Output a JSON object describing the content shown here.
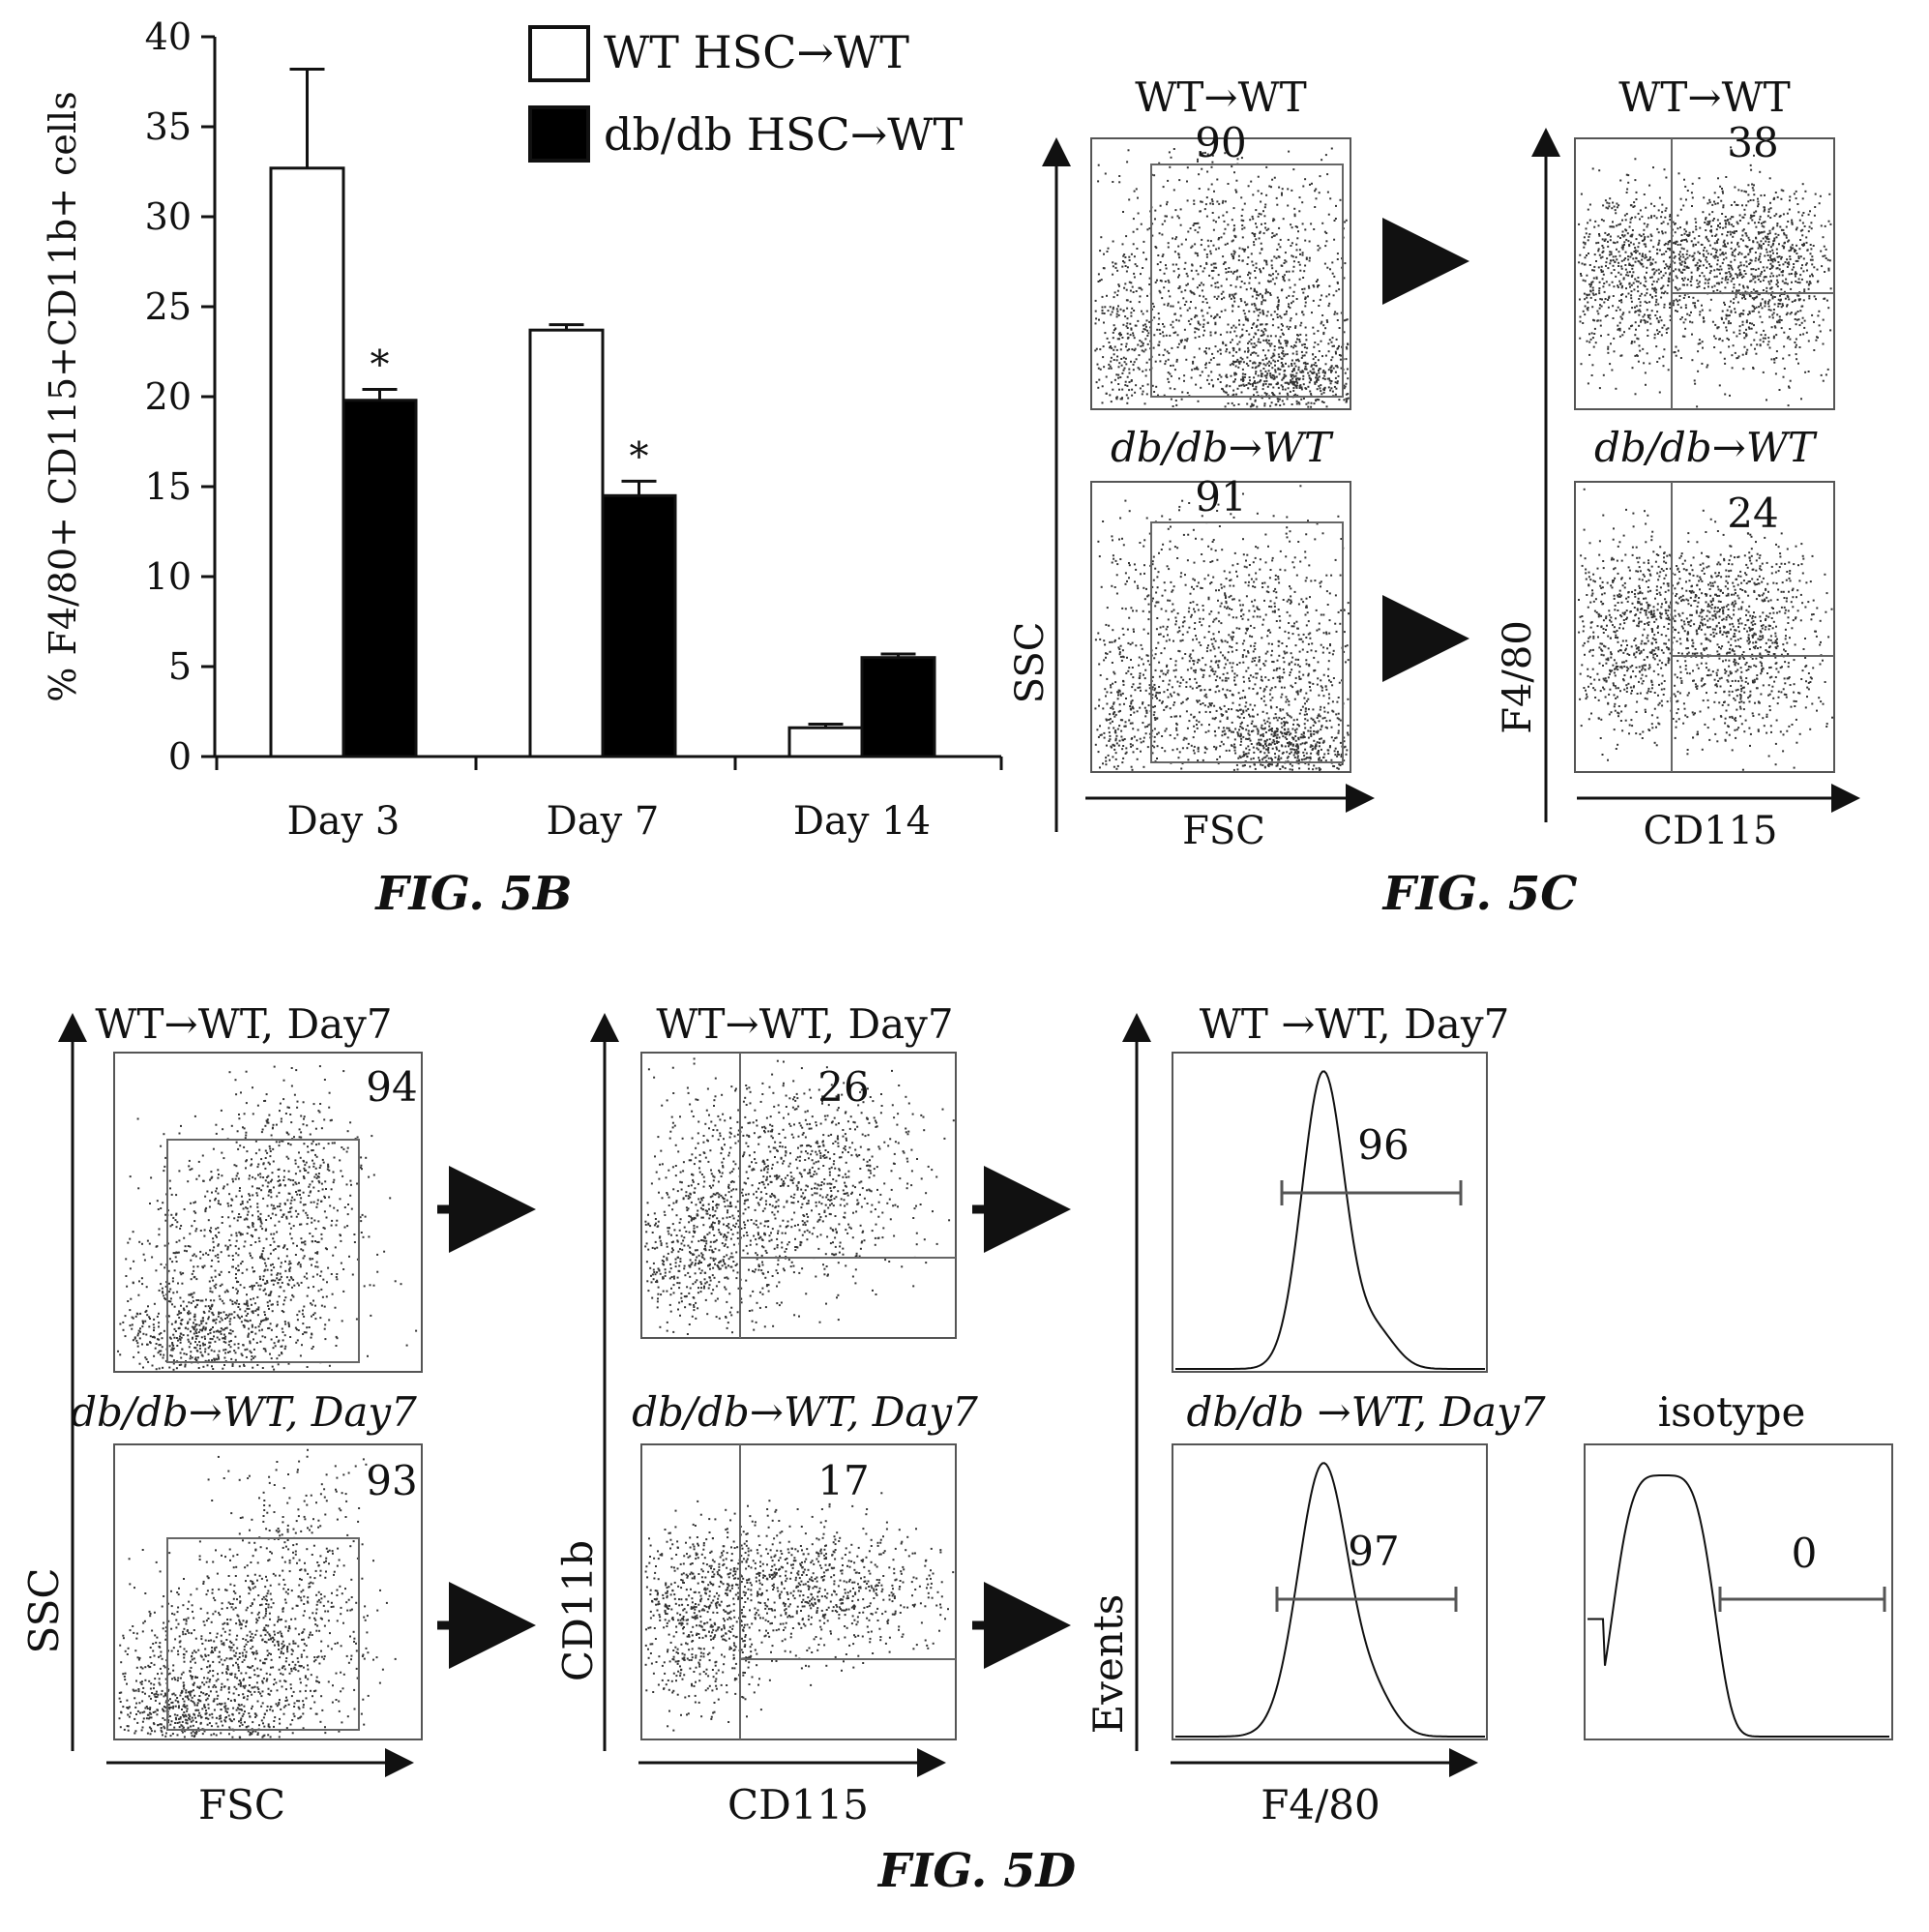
{
  "figures": {
    "fig5b_caption": "FIG. 5B",
    "fig5c_caption": "FIG. 5C",
    "fig5d_caption": "FIG. 5D"
  },
  "chart_data": [
    {
      "type": "bar",
      "panel": "FIG. 5B",
      "categories": [
        "Day 3",
        "Day 7",
        "Day 14"
      ],
      "series": [
        {
          "name": "WT HSC→WT",
          "values": [
            32.7,
            23.7,
            1.6
          ],
          "errors": [
            5.5,
            0.3,
            0.2
          ],
          "color": "#ffffff"
        },
        {
          "name": "db/db HSC→WT",
          "values": [
            19.8,
            14.5,
            5.5
          ],
          "errors": [
            0.6,
            0.8,
            0.2
          ],
          "color": "#000000"
        }
      ],
      "significance": [
        "*",
        "*",
        ""
      ],
      "ylabel": "% F4/80+ CD115+CD11b+ cells",
      "ylim": [
        0,
        40
      ],
      "yticks": [
        0,
        5,
        10,
        15,
        20,
        25,
        30,
        35,
        40
      ],
      "legend_position": "top"
    },
    {
      "type": "scatter",
      "panel": "FIG. 5C",
      "plots": [
        {
          "title": "WT→WT",
          "gate_value": "90",
          "xlabel": "FSC",
          "ylabel": "SSC"
        },
        {
          "title": "db/db→WT",
          "gate_value": "91",
          "xlabel": "FSC",
          "ylabel": "SSC"
        },
        {
          "title": "WT→WT",
          "gate_value": "38",
          "xlabel": "CD115",
          "ylabel": "F4/80"
        },
        {
          "title": "db/db→WT",
          "gate_value": "24",
          "xlabel": "CD115",
          "ylabel": "F4/80"
        }
      ]
    },
    {
      "type": "scatter",
      "panel": "FIG. 5D",
      "plots": [
        {
          "title": "WT→WT, Day7",
          "gate_value": "94",
          "xlabel": "FSC",
          "ylabel": "SSC"
        },
        {
          "title": "db/db→WT, Day7",
          "gate_value": "93",
          "xlabel": "FSC",
          "ylabel": "SSC"
        },
        {
          "title": "WT→WT, Day7",
          "gate_value": "26",
          "xlabel": "CD115",
          "ylabel": "CD11b"
        },
        {
          "title": "db/db→WT, Day7",
          "gate_value": "17",
          "xlabel": "CD115",
          "ylabel": "CD11b"
        },
        {
          "title": "WT →WT, Day7",
          "gate_value": "96",
          "xlabel": "F4/80",
          "ylabel": "Events",
          "kind": "histogram"
        },
        {
          "title": "db/db →WT, Day7",
          "gate_value": "97",
          "xlabel": "F4/80",
          "ylabel": "Events",
          "kind": "histogram"
        },
        {
          "title": "isotype",
          "gate_value": "0",
          "xlabel": "F4/80",
          "ylabel": "Events",
          "kind": "histogram"
        }
      ]
    }
  ]
}
